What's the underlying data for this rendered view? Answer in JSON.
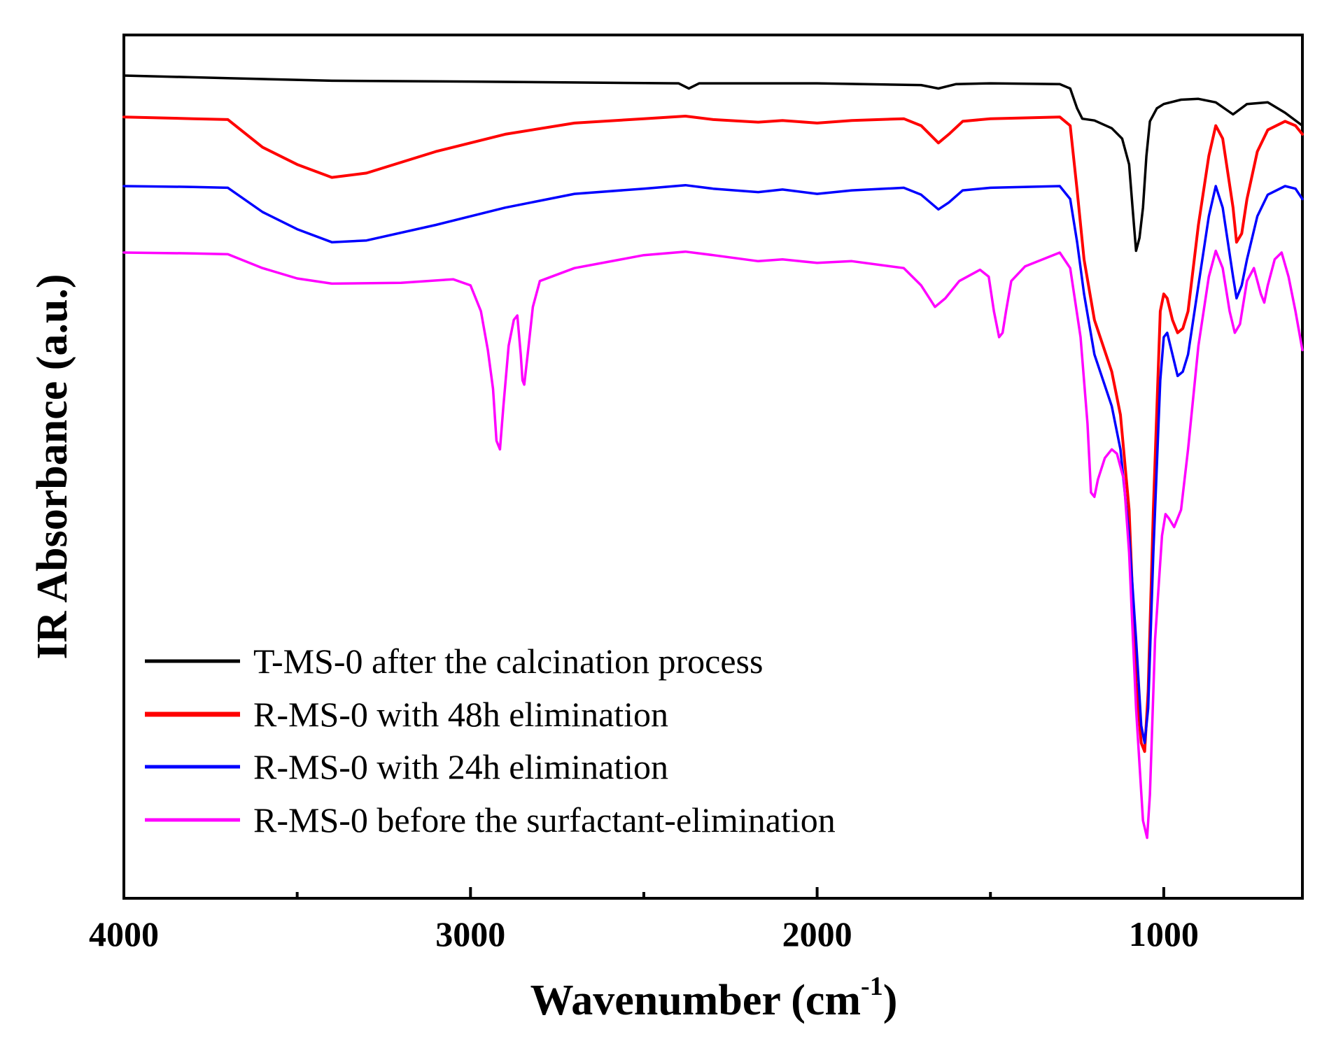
{
  "chart_data": {
    "type": "line",
    "title": "",
    "xlabel": "Wavenumber (cm",
    "xlabel_sup": "-1",
    "xlabel_end": ")",
    "ylabel": "IR Absorbance (a.u.)",
    "xlim": [
      4000,
      600
    ],
    "ylim": [
      0,
      100
    ],
    "x_ticks": [
      4000,
      3000,
      2000,
      1000
    ],
    "x_tick_labels": [
      "4000",
      "3000",
      "2000",
      "1000"
    ],
    "x_minor_ticks": [
      3500,
      2500,
      1500
    ],
    "grid": false,
    "legend_position": "bottom-left",
    "series": [
      {
        "name": "T-MS-0 after the calcination process",
        "color": "#000000",
        "points": [
          [
            4000,
            95.3
          ],
          [
            3700,
            95.0
          ],
          [
            3400,
            94.7
          ],
          [
            3000,
            94.6
          ],
          [
            2700,
            94.5
          ],
          [
            2400,
            94.4
          ],
          [
            2370,
            93.8
          ],
          [
            2340,
            94.4
          ],
          [
            2000,
            94.4
          ],
          [
            1700,
            94.2
          ],
          [
            1650,
            93.8
          ],
          [
            1600,
            94.3
          ],
          [
            1500,
            94.4
          ],
          [
            1300,
            94.3
          ],
          [
            1270,
            93.8
          ],
          [
            1250,
            91.5
          ],
          [
            1235,
            90.3
          ],
          [
            1200,
            90.1
          ],
          [
            1150,
            89.2
          ],
          [
            1120,
            88.0
          ],
          [
            1100,
            85.0
          ],
          [
            1090,
            80.0
          ],
          [
            1080,
            75.0
          ],
          [
            1070,
            76.5
          ],
          [
            1060,
            80.0
          ],
          [
            1050,
            86.0
          ],
          [
            1040,
            90.0
          ],
          [
            1020,
            91.5
          ],
          [
            1000,
            92.0
          ],
          [
            950,
            92.5
          ],
          [
            900,
            92.6
          ],
          [
            850,
            92.2
          ],
          [
            800,
            90.8
          ],
          [
            760,
            92.0
          ],
          [
            700,
            92.2
          ],
          [
            650,
            91.0
          ],
          [
            600,
            89.5
          ]
        ]
      },
      {
        "name": "R-MS-0 with 48h elimination",
        "color": "#ff0000",
        "points": [
          [
            4000,
            90.5
          ],
          [
            3800,
            90.3
          ],
          [
            3700,
            90.2
          ],
          [
            3600,
            87.0
          ],
          [
            3500,
            85.0
          ],
          [
            3400,
            83.5
          ],
          [
            3300,
            84.0
          ],
          [
            3100,
            86.5
          ],
          [
            2900,
            88.5
          ],
          [
            2700,
            89.8
          ],
          [
            2500,
            90.3
          ],
          [
            2380,
            90.6
          ],
          [
            2300,
            90.2
          ],
          [
            2170,
            89.9
          ],
          [
            2100,
            90.1
          ],
          [
            2000,
            89.8
          ],
          [
            1900,
            90.1
          ],
          [
            1750,
            90.3
          ],
          [
            1700,
            89.5
          ],
          [
            1650,
            87.5
          ],
          [
            1620,
            88.5
          ],
          [
            1580,
            90.0
          ],
          [
            1500,
            90.3
          ],
          [
            1300,
            90.5
          ],
          [
            1270,
            89.5
          ],
          [
            1250,
            82.0
          ],
          [
            1230,
            74.0
          ],
          [
            1200,
            67.0
          ],
          [
            1150,
            61.0
          ],
          [
            1125,
            56.0
          ],
          [
            1100,
            45.0
          ],
          [
            1080,
            25.0
          ],
          [
            1065,
            18.0
          ],
          [
            1055,
            17.0
          ],
          [
            1045,
            24.0
          ],
          [
            1030,
            45.0
          ],
          [
            1010,
            68.0
          ],
          [
            1000,
            70.0
          ],
          [
            990,
            69.5
          ],
          [
            975,
            67.0
          ],
          [
            960,
            65.5
          ],
          [
            945,
            66.0
          ],
          [
            930,
            68.0
          ],
          [
            900,
            78.0
          ],
          [
            870,
            86.0
          ],
          [
            850,
            89.5
          ],
          [
            830,
            88.0
          ],
          [
            800,
            80.0
          ],
          [
            790,
            76.0
          ],
          [
            775,
            77.0
          ],
          [
            760,
            81.0
          ],
          [
            730,
            86.5
          ],
          [
            700,
            89.0
          ],
          [
            650,
            90.0
          ],
          [
            620,
            89.5
          ],
          [
            600,
            88.5
          ]
        ]
      },
      {
        "name": "R-MS-0 with 24h elimination",
        "color": "#0000ff",
        "points": [
          [
            4000,
            82.5
          ],
          [
            3800,
            82.4
          ],
          [
            3700,
            82.3
          ],
          [
            3600,
            79.5
          ],
          [
            3500,
            77.5
          ],
          [
            3400,
            76.0
          ],
          [
            3300,
            76.2
          ],
          [
            3100,
            78.0
          ],
          [
            2900,
            80.0
          ],
          [
            2700,
            81.6
          ],
          [
            2500,
            82.2
          ],
          [
            2380,
            82.6
          ],
          [
            2300,
            82.2
          ],
          [
            2170,
            81.8
          ],
          [
            2100,
            82.1
          ],
          [
            2000,
            81.6
          ],
          [
            1900,
            82.0
          ],
          [
            1750,
            82.3
          ],
          [
            1700,
            81.5
          ],
          [
            1650,
            79.8
          ],
          [
            1620,
            80.6
          ],
          [
            1580,
            82.0
          ],
          [
            1500,
            82.3
          ],
          [
            1300,
            82.5
          ],
          [
            1270,
            81.0
          ],
          [
            1250,
            76.0
          ],
          [
            1230,
            70.0
          ],
          [
            1200,
            63.0
          ],
          [
            1150,
            57.0
          ],
          [
            1125,
            52.0
          ],
          [
            1100,
            42.0
          ],
          [
            1080,
            30.0
          ],
          [
            1065,
            20.0
          ],
          [
            1055,
            18.0
          ],
          [
            1045,
            22.0
          ],
          [
            1030,
            40.0
          ],
          [
            1010,
            60.0
          ],
          [
            1000,
            65.0
          ],
          [
            990,
            65.5
          ],
          [
            975,
            63.0
          ],
          [
            960,
            60.5
          ],
          [
            945,
            61.0
          ],
          [
            930,
            63.0
          ],
          [
            900,
            71.0
          ],
          [
            870,
            79.0
          ],
          [
            850,
            82.5
          ],
          [
            830,
            80.0
          ],
          [
            800,
            72.0
          ],
          [
            790,
            69.5
          ],
          [
            775,
            71.0
          ],
          [
            760,
            74.0
          ],
          [
            730,
            79.0
          ],
          [
            700,
            81.5
          ],
          [
            650,
            82.5
          ],
          [
            620,
            82.2
          ],
          [
            600,
            81.0
          ]
        ]
      },
      {
        "name": "R-MS-0 before the surfactant-elimination",
        "color": "#ff00ff",
        "points": [
          [
            4000,
            74.8
          ],
          [
            3800,
            74.7
          ],
          [
            3700,
            74.6
          ],
          [
            3600,
            73.0
          ],
          [
            3500,
            71.8
          ],
          [
            3400,
            71.2
          ],
          [
            3200,
            71.3
          ],
          [
            3050,
            71.7
          ],
          [
            3000,
            71.0
          ],
          [
            2970,
            68.0
          ],
          [
            2950,
            63.5
          ],
          [
            2935,
            59.0
          ],
          [
            2925,
            53.0
          ],
          [
            2915,
            52.0
          ],
          [
            2905,
            57.0
          ],
          [
            2890,
            64.0
          ],
          [
            2875,
            67.0
          ],
          [
            2865,
            67.5
          ],
          [
            2855,
            63.0
          ],
          [
            2850,
            60.0
          ],
          [
            2845,
            59.5
          ],
          [
            2835,
            63.0
          ],
          [
            2820,
            68.5
          ],
          [
            2800,
            71.5
          ],
          [
            2700,
            73.0
          ],
          [
            2500,
            74.5
          ],
          [
            2380,
            74.9
          ],
          [
            2300,
            74.5
          ],
          [
            2170,
            73.8
          ],
          [
            2100,
            74.0
          ],
          [
            2000,
            73.6
          ],
          [
            1900,
            73.8
          ],
          [
            1750,
            73.0
          ],
          [
            1700,
            71.0
          ],
          [
            1660,
            68.5
          ],
          [
            1630,
            69.5
          ],
          [
            1590,
            71.5
          ],
          [
            1530,
            72.8
          ],
          [
            1505,
            72.0
          ],
          [
            1490,
            68.0
          ],
          [
            1475,
            65.0
          ],
          [
            1465,
            65.5
          ],
          [
            1455,
            68.0
          ],
          [
            1440,
            71.5
          ],
          [
            1400,
            73.2
          ],
          [
            1300,
            74.8
          ],
          [
            1270,
            73.0
          ],
          [
            1240,
            65.0
          ],
          [
            1220,
            55.0
          ],
          [
            1210,
            47.0
          ],
          [
            1200,
            46.5
          ],
          [
            1190,
            48.5
          ],
          [
            1170,
            51.0
          ],
          [
            1150,
            52.0
          ],
          [
            1135,
            51.5
          ],
          [
            1115,
            48.5
          ],
          [
            1100,
            40.0
          ],
          [
            1080,
            22.0
          ],
          [
            1060,
            9.0
          ],
          [
            1048,
            7.0
          ],
          [
            1040,
            12.0
          ],
          [
            1025,
            30.0
          ],
          [
            1005,
            42.0
          ],
          [
            995,
            44.5
          ],
          [
            985,
            44.0
          ],
          [
            970,
            43.0
          ],
          [
            950,
            45.0
          ],
          [
            930,
            52.0
          ],
          [
            900,
            64.0
          ],
          [
            870,
            72.0
          ],
          [
            850,
            75.0
          ],
          [
            830,
            73.0
          ],
          [
            810,
            68.0
          ],
          [
            795,
            65.5
          ],
          [
            780,
            66.5
          ],
          [
            760,
            71.5
          ],
          [
            740,
            73.0
          ],
          [
            720,
            70.0
          ],
          [
            710,
            69.0
          ],
          [
            700,
            71.0
          ],
          [
            680,
            74.0
          ],
          [
            660,
            74.8
          ],
          [
            640,
            72.0
          ],
          [
            620,
            68.0
          ],
          [
            600,
            63.5
          ]
        ]
      }
    ]
  }
}
